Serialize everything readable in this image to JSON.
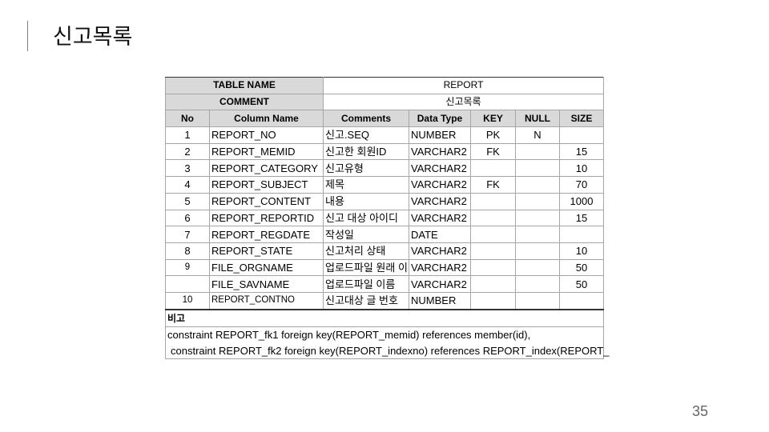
{
  "slide": {
    "title": "신고목록",
    "page_number": "35"
  },
  "table": {
    "meta": [
      {
        "label": "TABLE NAME",
        "value": "REPORT"
      },
      {
        "label": "COMMENT",
        "value": "신고목록"
      }
    ],
    "headers": [
      "No",
      "Column Name",
      "Comments",
      "Data Type",
      "KEY",
      "NULL",
      "SIZE"
    ],
    "rows": [
      [
        "1",
        "REPORT_NO",
        "신고.SEQ",
        "NUMBER",
        "PK",
        "N",
        ""
      ],
      [
        "2",
        "REPORT_MEMID",
        "신고한 회원ID",
        "VARCHAR2",
        "FK",
        "",
        "15"
      ],
      [
        "3",
        "REPORT_CATEGORY",
        "신고유형",
        "VARCHAR2",
        "",
        "",
        "10"
      ],
      [
        "4",
        "REPORT_SUBJECT",
        "제목",
        "VARCHAR2",
        "FK",
        "",
        "70"
      ],
      [
        "5",
        "REPORT_CONTENT",
        "내용",
        "VARCHAR2",
        "",
        "",
        "1000"
      ],
      [
        "6",
        "REPORT_REPORTID",
        "신고 대상 아이디",
        "VARCHAR2",
        "",
        "",
        "15"
      ],
      [
        "7",
        "REPORT_REGDATE",
        "작성일",
        "DATE",
        "",
        "",
        ""
      ],
      [
        "8",
        "REPORT_STATE",
        "신고처리 상태",
        "VARCHAR2",
        "",
        "",
        "10"
      ],
      [
        "9",
        "FILE_ORGNAME",
        "업로드파일 원래 이",
        "VARCHAR2",
        "",
        "",
        "50"
      ],
      [
        "",
        "FILE_SAVNAME",
        "업로드파일 이름",
        "VARCHAR2",
        "",
        "",
        "50"
      ],
      [
        "10",
        "REPORT_CONTNO",
        "신고대상 글 번호",
        "NUMBER",
        "",
        "",
        ""
      ]
    ],
    "notes_label": "비고",
    "notes": [
      "constraint REPORT_fk1 foreign key(REPORT_memid) references member(id),",
      " constraint REPORT_fk2 foreign key(REPORT_indexno) references REPORT_index(REPORT_"
    ]
  }
}
